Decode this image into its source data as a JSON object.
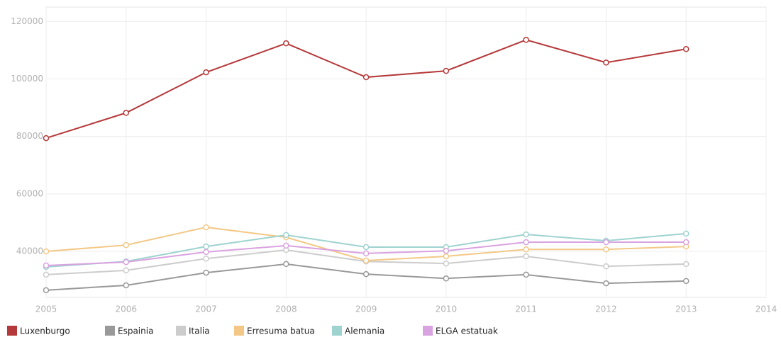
{
  "chart_data": {
    "type": "line",
    "x": [
      2005,
      2006,
      2007,
      2008,
      2009,
      2010,
      2011,
      2012,
      2013
    ],
    "xlim": [
      2005,
      2014
    ],
    "xticks": [
      2005,
      2006,
      2007,
      2008,
      2009,
      2010,
      2011,
      2012,
      2013,
      2014
    ],
    "ylim": [
      24000,
      125000
    ],
    "yticks": [
      40000,
      60000,
      80000,
      100000,
      120000
    ],
    "grid": true,
    "legend": "bottom",
    "series": [
      {
        "name": "Luxenburgo",
        "color": "#b5393a",
        "values": [
          79400,
          88200,
          102300,
          112400,
          100600,
          102800,
          113600,
          105700,
          110400
        ]
      },
      {
        "name": "Espainia",
        "color": "#999999",
        "values": [
          26500,
          28200,
          32600,
          35600,
          32100,
          30600,
          31900,
          28900,
          29700
        ]
      },
      {
        "name": "Italia",
        "color": "#cccccc",
        "values": [
          31900,
          33400,
          37500,
          40500,
          36500,
          35800,
          38300,
          34800,
          35600
        ]
      },
      {
        "name": "Erresuma batua",
        "color": "#f3c887",
        "values": [
          40000,
          42200,
          48400,
          44900,
          36800,
          38300,
          40700,
          40700,
          41700
        ]
      },
      {
        "name": "Alemania",
        "color": "#9ed3cf",
        "values": [
          34600,
          36500,
          41700,
          45700,
          41500,
          41500,
          45900,
          43700,
          46200
        ]
      },
      {
        "name": "ELGA estatuak",
        "color": "#d9a2e0",
        "values": [
          35100,
          36300,
          39800,
          42000,
          39300,
          40200,
          43200,
          43200,
          43200
        ]
      }
    ]
  }
}
